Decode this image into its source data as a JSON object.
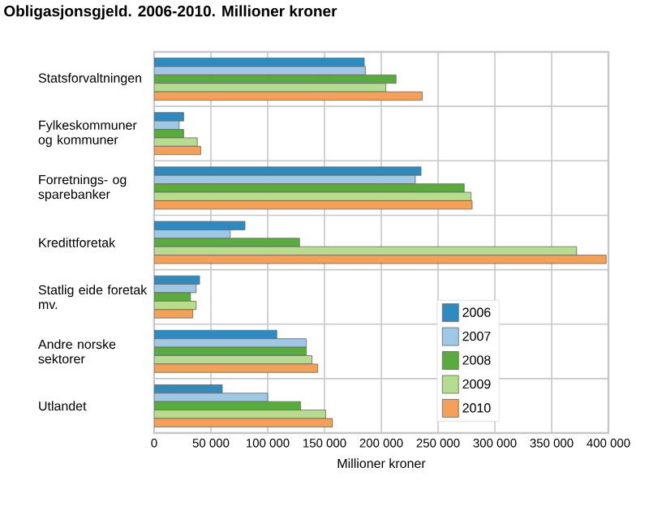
{
  "chart_data": {
    "type": "bar",
    "orientation": "horizontal",
    "title": "Obligasjonsgjeld. 2006-2010. Millioner kroner",
    "xlabel": "Millioner kroner",
    "categories": [
      "Statsforvaltningen",
      "Fylkeskommuner og kommuner",
      "Forretnings- og sparebanker",
      "Kredittforetak",
      "Statlig eide foretak mv.",
      "Andre norske sektorer",
      "Utlandet"
    ],
    "series": [
      {
        "name": "2006",
        "color": "#2e8bc0",
        "values": [
          185000,
          26000,
          235000,
          80000,
          40000,
          108000,
          60000
        ]
      },
      {
        "name": "2007",
        "color": "#9ec8e6",
        "values": [
          186000,
          22000,
          230000,
          67000,
          37000,
          134000,
          100000
        ]
      },
      {
        "name": "2008",
        "color": "#5aab3d",
        "values": [
          213000,
          26000,
          273000,
          128000,
          32000,
          134000,
          129000
        ]
      },
      {
        "name": "2009",
        "color": "#b5dc8f",
        "values": [
          204000,
          38000,
          279000,
          372000,
          37000,
          139000,
          151000
        ]
      },
      {
        "name": "2010",
        "color": "#f5a057",
        "values": [
          236000,
          41000,
          280000,
          398000,
          34000,
          144000,
          157000
        ]
      }
    ],
    "xlim": [
      0,
      400000
    ],
    "xticks": [
      {
        "value": 0,
        "label": "0"
      },
      {
        "value": 50000,
        "label": "50 000"
      },
      {
        "value": 100000,
        "label": "100 000"
      },
      {
        "value": 150000,
        "label": "150 000"
      },
      {
        "value": 200000,
        "label": "200 000"
      },
      {
        "value": 250000,
        "label": "250 000"
      },
      {
        "value": 300000,
        "label": "300 000"
      },
      {
        "value": 350000,
        "label": "350 000"
      },
      {
        "value": 400000,
        "label": "400 000"
      }
    ],
    "grid": true,
    "legend": "bottom right"
  }
}
